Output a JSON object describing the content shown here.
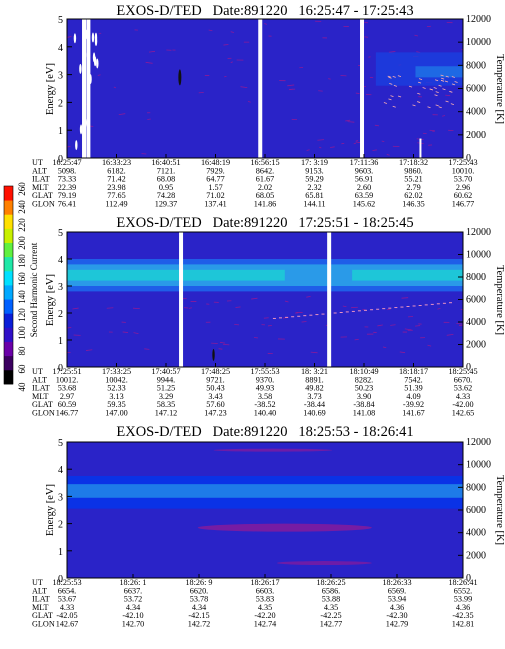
{
  "figure": {
    "colorbar_label": "Second Harmonic Current",
    "colorbar_ticks": [
      "40",
      "60",
      "80",
      "100",
      "120",
      "140",
      "160",
      "180",
      "200",
      "220",
      "240",
      "260"
    ],
    "colorbar_colors": [
      "#000000",
      "#3b0060",
      "#6a00a8",
      "#3010c8",
      "#0a1ed8",
      "#0060ff",
      "#00a8ff",
      "#00e0ff",
      "#20e8a8",
      "#60f040",
      "#c8f000",
      "#ffe000",
      "#ff8000",
      "#ff1000"
    ]
  },
  "chart_data": [
    {
      "type": "heatmap",
      "title": "EXOS-D/TED   Date:891220   16:25:47 - 17:25:43",
      "ylabel": "Energy [eV]",
      "ylim": [
        0,
        5
      ],
      "yticks": [
        "0",
        "1",
        "2",
        "3",
        "4",
        "5"
      ],
      "y2label": "Temperature [K]",
      "y2lim": [
        0,
        12000
      ],
      "y2ticks": [
        "0",
        "2000",
        "4000",
        "6000",
        "8000",
        "10000",
        "12000"
      ],
      "gaps": [
        0.043,
        0.054,
        0.488,
        0.745
      ],
      "row_labels": [
        "UT",
        "ALT",
        "ILAT",
        "MLT",
        "GLAT",
        "GLON"
      ],
      "rows": [
        [
          "16:25:47",
          "16:33:23",
          "16:40:51",
          "16:48:19",
          "16:56:15",
          "17: 3:19",
          "17:11:36",
          "17:18:32",
          "17:25:43"
        ],
        [
          "5098.",
          "6182.",
          "7121.",
          "7929.",
          "8642.",
          "9153.",
          "9603.",
          "9860.",
          "10010."
        ],
        [
          "73.33",
          "71.42",
          "68.08",
          "64.77",
          "61.67",
          "59.29",
          "56.91",
          "55.21",
          "53.70"
        ],
        [
          "22.39",
          "23.98",
          "0.95",
          "1.57",
          "2.02",
          "2.32",
          "2.60",
          "2.79",
          "2.96"
        ],
        [
          "79.19",
          "77.65",
          "74.28",
          "71.02",
          "68.05",
          "65.81",
          "63.59",
          "62.02",
          "60.62"
        ],
        [
          "76.41",
          "112.49",
          "129.37",
          "137.41",
          "141.86",
          "144.11",
          "145.62",
          "146.35",
          "146.77"
        ]
      ]
    },
    {
      "type": "heatmap",
      "title": "EXOS-D/TED   Date:891220   17:25:51 - 18:25:45",
      "ylabel": "Energy [eV]",
      "ylim": [
        0,
        5
      ],
      "yticks": [
        "0",
        "1",
        "2",
        "3",
        "4",
        "5"
      ],
      "y2label": "Temperature [K]",
      "y2lim": [
        0,
        12000
      ],
      "y2ticks": [
        "0",
        "2000",
        "4000",
        "6000",
        "8000",
        "10000",
        "12000"
      ],
      "gaps": [
        0.288,
        0.662
      ],
      "row_labels": [
        "UT",
        "ALT",
        "ILAT",
        "MLT",
        "GLAT",
        "GLON"
      ],
      "rows": [
        [
          "17:25:51",
          "17:33:25",
          "17:40:57",
          "17:48:25",
          "17:55:53",
          "18: 3:21",
          "18:10:49",
          "18:18:17",
          "18:25:45"
        ],
        [
          "10012.",
          "10042.",
          "9944.",
          "9721.",
          "9370.",
          "8891.",
          "8282.",
          "7542.",
          "6670."
        ],
        [
          "53.68",
          "52.33",
          "51.25",
          "50.43",
          "49.93",
          "49.82",
          "50.23",
          "51.39",
          "53.62"
        ],
        [
          "2.97",
          "3.13",
          "3.29",
          "3.43",
          "3.58",
          "3.73",
          "3.90",
          "4.09",
          "4.33"
        ],
        [
          "60.59",
          "59.35",
          "58.35",
          "57.60",
          "-38.52",
          "-38.44",
          "-38.84",
          "-39.92",
          "-42.00"
        ],
        [
          "146.77",
          "147.00",
          "147.12",
          "147.23",
          "140.40",
          "140.69",
          "141.08",
          "141.67",
          "142.65"
        ]
      ]
    },
    {
      "type": "heatmap",
      "title": "EXOS-D/TED   Date:891220   18:25:53 - 18:26:41",
      "ylabel": "Energy [eV]",
      "ylim": [
        0,
        5
      ],
      "yticks": [
        "0",
        "1",
        "2",
        "3",
        "4",
        "5"
      ],
      "y2label": "Temperature [K]",
      "y2lim": [
        0,
        12000
      ],
      "y2ticks": [
        "0",
        "2000",
        "4000",
        "6000",
        "8000",
        "10000",
        "12000"
      ],
      "gaps": [],
      "row_labels": [
        "UT",
        "ALT",
        "ILAT",
        "MLT",
        "GLAT",
        "GLON"
      ],
      "rows": [
        [
          "18:25:53",
          "18:26: 1",
          "18:26: 9",
          "18:26:17",
          "18:26:25",
          "18:26:33",
          "18:26:41"
        ],
        [
          "6654.",
          "6637.",
          "6620.",
          "6603.",
          "6586.",
          "6569.",
          "6552."
        ],
        [
          "53.67",
          "53.72",
          "53.78",
          "53.83",
          "53.88",
          "53.94",
          "53.99"
        ],
        [
          "4.33",
          "4.34",
          "4.34",
          "4.35",
          "4.35",
          "4.36",
          "4.36"
        ],
        [
          "-42.05",
          "-42.10",
          "-42.15",
          "-42.20",
          "-42.25",
          "-42.30",
          "-42.35"
        ],
        [
          "142.67",
          "142.70",
          "142.72",
          "142.74",
          "142.77",
          "142.79",
          "142.81"
        ]
      ]
    }
  ]
}
